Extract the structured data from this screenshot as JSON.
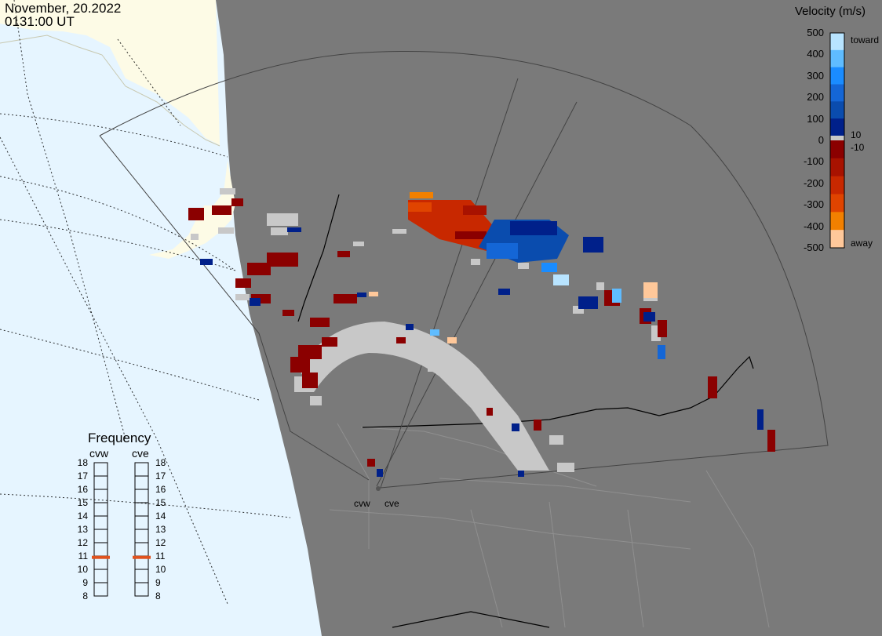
{
  "header": {
    "date": "November, 20.2022",
    "time": "0131:00 UT"
  },
  "colorbar": {
    "title": "Velocity (m/s)",
    "ticks": [
      "500",
      "400",
      "300",
      "200",
      "100",
      "0",
      "-100",
      "-200",
      "-300",
      "-400",
      "-500"
    ],
    "near_zero_labels": [
      "10",
      "-10"
    ],
    "toward_label": "toward",
    "away_label": "away",
    "toward_colors": [
      "#b8e4ff",
      "#5fbcff",
      "#1a8cff",
      "#1466d6",
      "#0a4cae",
      "#00208a"
    ],
    "away_colors": [
      "#8b0000",
      "#a81200",
      "#c82800",
      "#e04400",
      "#f28000",
      "#ffc89a"
    ],
    "ground_scatter_color": "#c8c8c8"
  },
  "frequency_panel": {
    "title": "Frequency",
    "unit": "",
    "radars": [
      {
        "name": "cvw",
        "frequency_mhz": 10.9,
        "marker_color": "#e0521e"
      },
      {
        "name": "cve",
        "frequency_mhz": 10.9,
        "marker_color": "#e0521e"
      }
    ],
    "scale": [
      "18",
      "17",
      "16",
      "15",
      "14",
      "13",
      "12",
      "11",
      "10",
      "9",
      "8"
    ]
  },
  "sites": [
    {
      "name": "cvw",
      "label": "cvw"
    },
    {
      "name": "cve",
      "label": "cve"
    }
  ],
  "map_colors": {
    "ocean_sunlit": "#e6f5ff",
    "land_sunlit": "#fdfbe6",
    "night": "#7a7a7a"
  }
}
